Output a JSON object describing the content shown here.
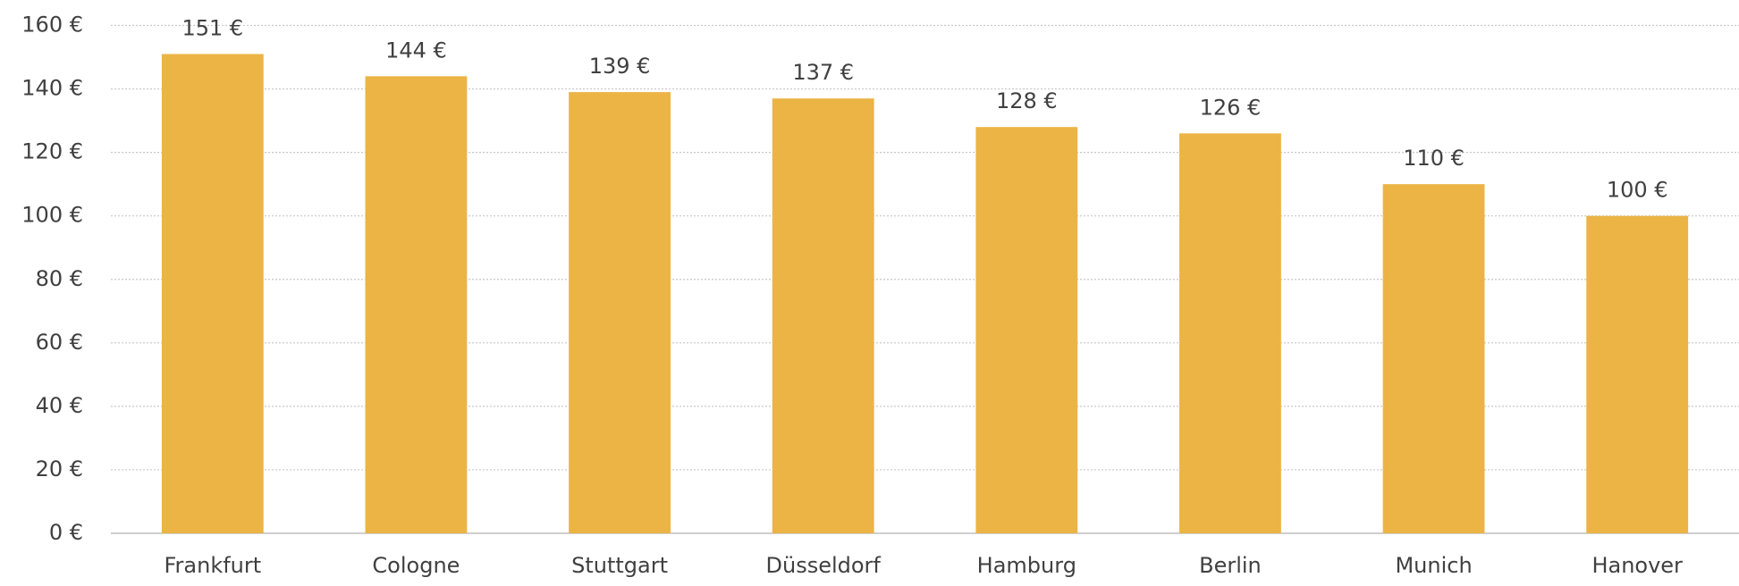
{
  "chart_data": {
    "type": "bar",
    "categories": [
      "Frankfurt",
      "Cologne",
      "Stuttgart",
      "Düsseldorf",
      "Hamburg",
      "Berlin",
      "Munich",
      "Hanover"
    ],
    "values": [
      151,
      144,
      139,
      137,
      128,
      126,
      110,
      100
    ],
    "value_labels": [
      "151 €",
      "144 €",
      "139 €",
      "137 €",
      "128 €",
      "126 €",
      "110 €",
      "100 €"
    ],
    "color": "#ebb445",
    "ylim": [
      0,
      160
    ],
    "yticks": [
      {
        "value": 0,
        "label": "0 €"
      },
      {
        "value": 20,
        "label": "20 €"
      },
      {
        "value": 40,
        "label": "40 €"
      },
      {
        "value": 60,
        "label": "60 €"
      },
      {
        "value": 80,
        "label": "80 €"
      },
      {
        "value": 100,
        "label": "100 €"
      },
      {
        "value": 120,
        "label": "120 €"
      },
      {
        "value": 140,
        "label": "140 €"
      },
      {
        "value": 160,
        "label": "160 €"
      }
    ],
    "grid": true
  }
}
